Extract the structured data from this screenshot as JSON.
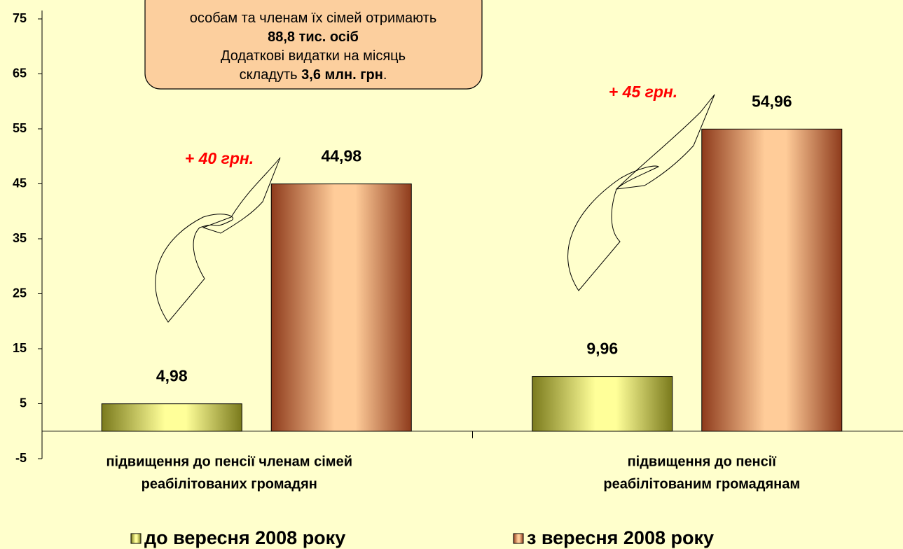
{
  "chart_data": {
    "type": "bar",
    "categories": [
      [
        "підвищення до пенсії членам сімей",
        "реабілітованих громадян"
      ],
      [
        "підвищення до пенсії",
        "реабілітованим громадянам"
      ]
    ],
    "series": [
      {
        "name": "до вересня 2008 року",
        "color": "#7a7a1c",
        "values": [
          4.98,
          9.96
        ],
        "value_labels": [
          "4,98",
          "9,96"
        ]
      },
      {
        "name": "з вересня 2008 року",
        "color": "#8e3b1c",
        "values": [
          44.98,
          54.96
        ],
        "value_labels": [
          "44,98",
          "54,96"
        ]
      }
    ],
    "ylim": [
      -5,
      75
    ],
    "yticks": [
      -5,
      5,
      15,
      25,
      35,
      45,
      55,
      65,
      75
    ],
    "annotations": [
      "+ 40 грн.",
      "+ 45 грн."
    ],
    "note": [
      [
        {
          "text": "особам та членам їх сімей отримають",
          "bold": false
        }
      ],
      [
        {
          "text": "88,8 тис. осіб",
          "bold": true
        }
      ],
      [
        {
          "text": "Додаткові видатки на місяць",
          "bold": false
        }
      ],
      [
        {
          "text": "складуть ",
          "bold": false
        },
        {
          "text": "3,6 млн. грн",
          "bold": true
        },
        {
          "text": ".",
          "bold": false
        }
      ]
    ]
  }
}
